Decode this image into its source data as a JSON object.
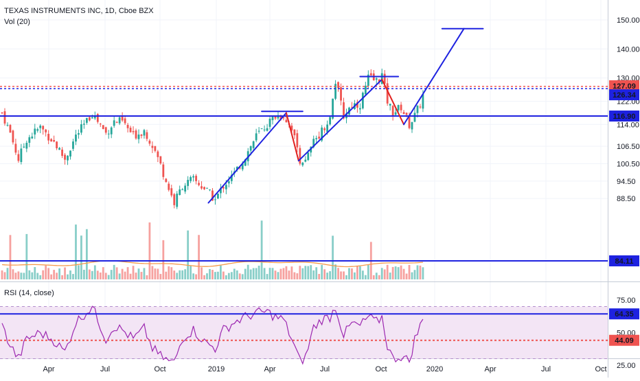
{
  "header": {
    "title": "TEXAS INSTRUMENTS INC, 1D, Cboe BZX",
    "volume_label": "Vol (20)"
  },
  "rsi_panel": {
    "label": "RSI (14, close)"
  },
  "colors": {
    "bull": "#26a69a",
    "bear": "#ef5350",
    "trendline": "#1e22e0",
    "swing_down": "#e0201e",
    "rsi_line": "#9c27b0",
    "rsi_band": "#f3e5f5",
    "grid": "#f0f3fa",
    "volume_ma": "#f59a4a"
  },
  "chart_data": [
    {
      "type": "candlestick",
      "title": "TEXAS INSTRUMENTS INC, 1D, Cboe BZX",
      "x_tick_labels": [
        "Apr",
        "Jul",
        "Oct",
        "2019",
        "Apr",
        "Jul",
        "Oct",
        "2020",
        "Apr",
        "Jul",
        "Oct"
      ],
      "y_tick_labels": [
        "150.00",
        "140.00",
        "130.00",
        "122.00",
        "114.00",
        "106.50",
        "100.50",
        "94.50",
        "88.50"
      ],
      "y_ticks": [
        150,
        140,
        130,
        122,
        114,
        106.5,
        100.5,
        94.5,
        88.5
      ],
      "price_markers": [
        {
          "label": "127.09",
          "value": 127.09,
          "color": "#ef5350"
        },
        {
          "label": "126.34",
          "value": 126.34,
          "color": "#1e22e0"
        },
        {
          "label": "116.90",
          "value": 116.9,
          "color": "#1e22e0"
        }
      ],
      "close_path_anchors": [
        [
          0,
          118
        ],
        [
          3,
          111
        ],
        [
          6,
          102
        ],
        [
          9,
          109
        ],
        [
          14,
          113
        ],
        [
          19,
          108
        ],
        [
          23,
          102
        ],
        [
          27,
          110
        ],
        [
          31,
          115
        ],
        [
          33,
          118
        ],
        [
          38,
          111
        ],
        [
          41,
          115
        ],
        [
          44,
          115
        ],
        [
          48,
          110
        ],
        [
          52,
          112
        ],
        [
          55,
          107
        ],
        [
          58,
          100
        ],
        [
          61,
          92
        ],
        [
          63,
          87
        ],
        [
          66,
          93
        ],
        [
          70,
          95
        ],
        [
          74,
          92
        ],
        [
          78,
          88
        ],
        [
          81,
          93
        ],
        [
          85,
          97
        ],
        [
          89,
          103
        ],
        [
          93,
          110
        ],
        [
          97,
          114
        ],
        [
          100,
          117
        ],
        [
          103,
          117
        ],
        [
          106,
          113
        ],
        [
          109,
          102
        ],
        [
          111,
          101
        ],
        [
          114,
          108
        ],
        [
          117,
          112
        ],
        [
          120,
          116
        ],
        [
          122,
          129
        ],
        [
          125,
          117
        ],
        [
          128,
          121
        ],
        [
          131,
          121
        ],
        [
          134,
          130
        ],
        [
          137,
          129
        ],
        [
          139,
          131
        ],
        [
          141,
          122
        ],
        [
          143,
          118
        ],
        [
          146,
          120
        ],
        [
          149,
          114
        ],
        [
          151,
          117
        ],
        [
          153,
          121
        ],
        [
          155,
          127
        ]
      ],
      "overlay_lines": [
        {
          "style": "trend",
          "points": [
            [
              75.5,
              87
            ],
            [
              104,
              118
            ]
          ]
        },
        {
          "style": "resistance",
          "points": [
            [
              95,
              118.5
            ],
            [
              110,
              118.5
            ]
          ]
        },
        {
          "style": "swing_down",
          "points": [
            [
              104,
              118
            ],
            [
              108.5,
              101.5
            ]
          ]
        },
        {
          "style": "trend",
          "points": [
            [
              108.5,
              101.5
            ],
            [
              139,
              129.5
            ]
          ]
        },
        {
          "style": "resistance",
          "points": [
            [
              131,
              130.5
            ],
            [
              145,
              130.5
            ]
          ]
        },
        {
          "style": "swing_down",
          "points": [
            [
              139,
              129.5
            ],
            [
              147,
              114
            ]
          ]
        },
        {
          "style": "trend",
          "points": [
            [
              147,
              114
            ],
            [
              169,
              147
            ]
          ]
        },
        {
          "style": "resistance",
          "points": [
            [
              161,
              147
            ],
            [
              176,
              147
            ]
          ]
        }
      ],
      "horizontal_lines": [
        {
          "value": 116.9,
          "style": "solid"
        },
        {
          "value": 126.34,
          "style": "dotted_blue"
        },
        {
          "value": 127.09,
          "style": "dotted_red"
        }
      ]
    },
    {
      "type": "bar",
      "title": "Vol (20)",
      "price_markers": [
        {
          "label": "84.11",
          "color": "#1e22e0"
        }
      ]
    },
    {
      "type": "line",
      "title": "RSI (14, close)",
      "y_tick_labels": [
        "75.00",
        "50.00",
        "25.00"
      ],
      "y_ticks": [
        75,
        50,
        25
      ],
      "bands": [
        30,
        70
      ],
      "ylim": [
        15,
        80
      ],
      "rsi_anchors": [
        [
          0,
          55
        ],
        [
          3,
          40
        ],
        [
          6,
          30
        ],
        [
          9,
          45
        ],
        [
          14,
          50
        ],
        [
          19,
          44
        ],
        [
          23,
          35
        ],
        [
          27,
          58
        ],
        [
          31,
          66
        ],
        [
          33,
          70
        ],
        [
          38,
          45
        ],
        [
          41,
          55
        ],
        [
          44,
          52
        ],
        [
          48,
          45
        ],
        [
          52,
          53
        ],
        [
          55,
          38
        ],
        [
          58,
          32
        ],
        [
          61,
          28
        ],
        [
          63,
          27
        ],
        [
          66,
          46
        ],
        [
          70,
          52
        ],
        [
          74,
          43
        ],
        [
          78,
          38
        ],
        [
          81,
          52
        ],
        [
          85,
          58
        ],
        [
          89,
          62
        ],
        [
          93,
          65
        ],
        [
          97,
          66
        ],
        [
          100,
          62
        ],
        [
          103,
          60
        ],
        [
          106,
          45
        ],
        [
          109,
          28
        ],
        [
          111,
          31
        ],
        [
          114,
          54
        ],
        [
          117,
          60
        ],
        [
          120,
          62
        ],
        [
          122,
          70
        ],
        [
          125,
          48
        ],
        [
          128,
          57
        ],
        [
          131,
          55
        ],
        [
          134,
          62
        ],
        [
          137,
          58
        ],
        [
          139,
          62
        ],
        [
          141,
          40
        ],
        [
          143,
          30
        ],
        [
          146,
          32
        ],
        [
          149,
          28
        ],
        [
          151,
          45
        ],
        [
          153,
          55
        ],
        [
          155,
          64
        ]
      ],
      "price_markers": [
        {
          "label": "64.35",
          "value": 64.35,
          "color": "#1e22e0"
        },
        {
          "label": "44.09",
          "value": 44.09,
          "color": "#ef5350"
        }
      ]
    }
  ]
}
